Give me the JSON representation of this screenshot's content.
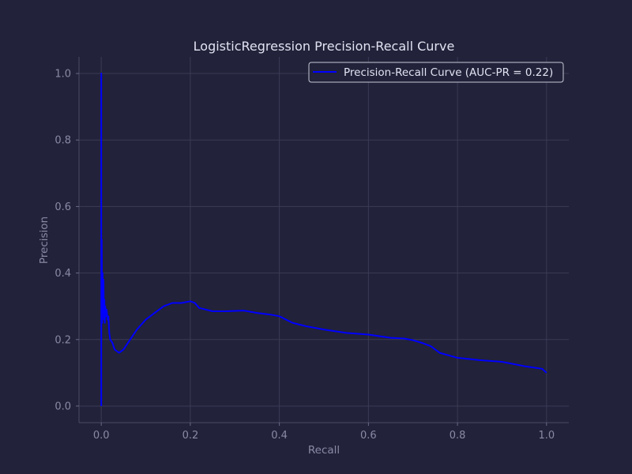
{
  "chart_data": {
    "type": "line",
    "title": "LogisticRegression Precision-Recall Curve",
    "xlabel": "Recall",
    "ylabel": "Precision",
    "xlim": [
      -0.05,
      1.05
    ],
    "ylim": [
      -0.05,
      1.05
    ],
    "xticks": [
      0.0,
      0.2,
      0.4,
      0.6,
      0.8,
      1.0
    ],
    "xtick_labels": [
      "0.0",
      "0.2",
      "0.4",
      "0.6",
      "0.8",
      "1.0"
    ],
    "yticks": [
      0.0,
      0.2,
      0.4,
      0.6,
      0.8,
      1.0
    ],
    "ytick_labels": [
      "0.0",
      "0.2",
      "0.4",
      "0.6",
      "0.8",
      "1.0"
    ],
    "grid": true,
    "legend": "top-right",
    "background_color": "#22223a",
    "series": [
      {
        "name": "Precision-Recall Curve (AUC-PR = 0.22)",
        "color": "#0000ff",
        "x": [
          0.0,
          0.0,
          0.0,
          0.001,
          0.002,
          0.003,
          0.004,
          0.005,
          0.006,
          0.007,
          0.008,
          0.009,
          0.01,
          0.012,
          0.014,
          0.016,
          0.018,
          0.02,
          0.025,
          0.03,
          0.035,
          0.04,
          0.05,
          0.06,
          0.08,
          0.1,
          0.12,
          0.14,
          0.16,
          0.18,
          0.2,
          0.21,
          0.22,
          0.25,
          0.28,
          0.32,
          0.35,
          0.38,
          0.4,
          0.43,
          0.46,
          0.5,
          0.55,
          0.6,
          0.65,
          0.68,
          0.7,
          0.72,
          0.74,
          0.76,
          0.8,
          0.85,
          0.9,
          0.95,
          0.99,
          1.0
        ],
        "y": [
          0.0,
          1.0,
          0.2,
          0.5,
          0.25,
          0.4,
          0.28,
          0.38,
          0.26,
          0.32,
          0.25,
          0.3,
          0.27,
          0.29,
          0.26,
          0.27,
          0.22,
          0.2,
          0.19,
          0.17,
          0.165,
          0.16,
          0.17,
          0.19,
          0.23,
          0.26,
          0.28,
          0.3,
          0.31,
          0.31,
          0.315,
          0.31,
          0.295,
          0.285,
          0.285,
          0.287,
          0.28,
          0.275,
          0.27,
          0.25,
          0.24,
          0.23,
          0.22,
          0.215,
          0.205,
          0.203,
          0.198,
          0.19,
          0.18,
          0.16,
          0.145,
          0.138,
          0.133,
          0.12,
          0.112,
          0.1
        ]
      }
    ]
  }
}
